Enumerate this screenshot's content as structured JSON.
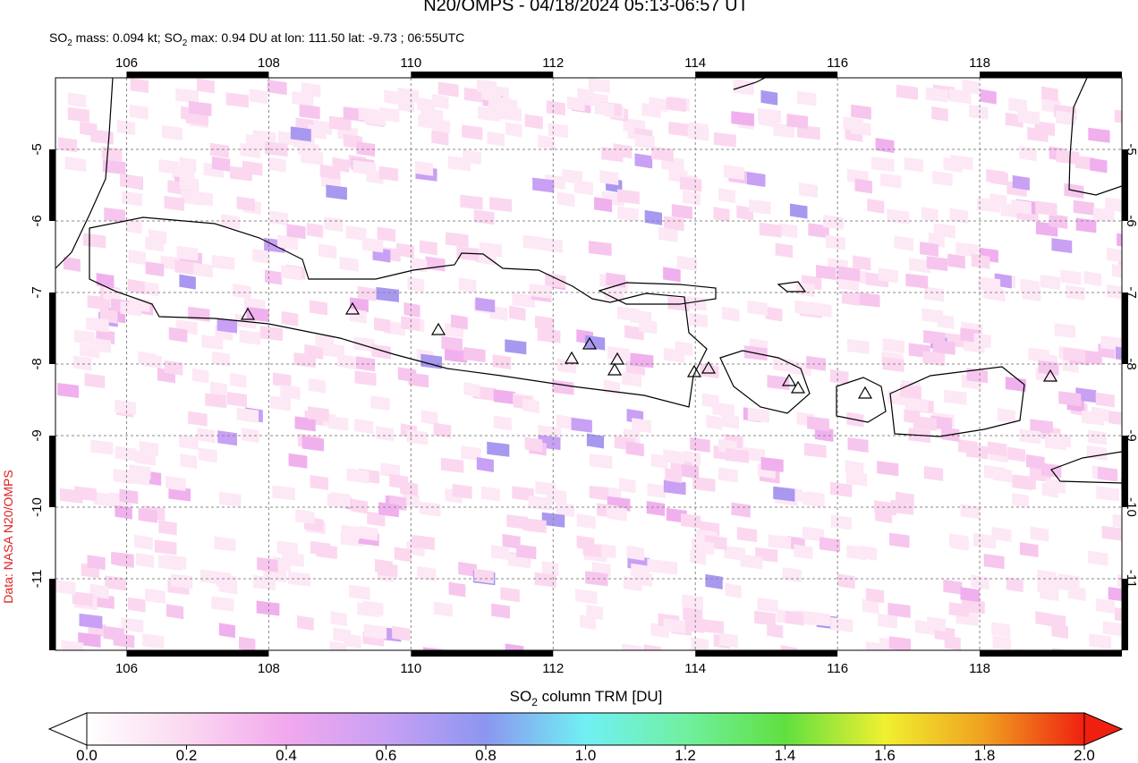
{
  "title": "N20/OMPS - 04/18/2024 05:13-06:57 UT",
  "subtitle": [
    "SO",
    "2",
    " mass: 0.094 kt; SO",
    "2",
    " max: 0.94 DU at lon: 111.50 lat: -9.73 ; 06:55UTC"
  ],
  "credit": "Data: NASA N20/OMPS",
  "map": {
    "xlim": [
      105,
      120
    ],
    "ylim": [
      -12,
      -4
    ],
    "xticks": [
      106,
      108,
      110,
      112,
      114,
      116,
      118
    ],
    "yticks": [
      -5,
      -6,
      -7,
      -8,
      -9,
      -10,
      -11
    ]
  },
  "colorbar": {
    "label": [
      "SO",
      "2",
      " column TRM [DU]"
    ],
    "range": [
      0,
      2
    ],
    "ticks": [
      {
        "value": 0,
        "label": "0.0"
      },
      {
        "value": 0.2,
        "label": "0.2"
      },
      {
        "value": 0.4,
        "label": "0.4"
      },
      {
        "value": 0.6,
        "label": "0.6"
      },
      {
        "value": 0.8,
        "label": "0.8"
      },
      {
        "value": 1,
        "label": "1.0"
      },
      {
        "value": 1.2,
        "label": "1.2"
      },
      {
        "value": 1.4,
        "label": "1.4"
      },
      {
        "value": 1.6,
        "label": "1.6"
      },
      {
        "value": 1.8,
        "label": "1.8"
      },
      {
        "value": 2,
        "label": "2.0"
      }
    ]
  }
}
